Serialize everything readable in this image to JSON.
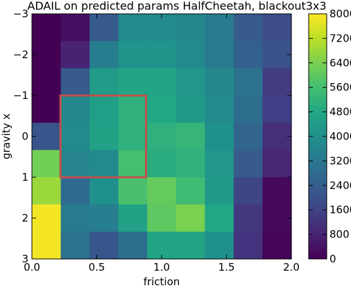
{
  "chart_data": {
    "type": "heatmap",
    "title": "ADAIL on predicted params HalfCheetah, blackout3x3",
    "xlabel": "friction",
    "ylabel": "gravity x",
    "xlim": [
      0.0,
      2.0
    ],
    "ylim": [
      -3,
      3
    ],
    "x_ticks": [
      "0.0",
      "0.5",
      "1.0",
      "1.5",
      "2.0"
    ],
    "y_ticks": [
      "−3",
      "−2",
      "−1",
      "0",
      "1",
      "2",
      "3"
    ],
    "colorbar": {
      "colormap": "viridis",
      "range": [
        0,
        8000
      ],
      "ticks": [
        "0",
        "800",
        "1600",
        "2400",
        "3200",
        "4000",
        "4800",
        "5600",
        "6400",
        "7200",
        "8000"
      ]
    },
    "rows": 9,
    "cols": 9,
    "values": [
      [
        0,
        300,
        2300,
        3800,
        3800,
        3700,
        3300,
        2300,
        1900
      ],
      [
        0,
        800,
        3400,
        4100,
        4100,
        3800,
        3300,
        2500,
        2000
      ],
      [
        0,
        2300,
        4400,
        4700,
        4700,
        4200,
        3700,
        3000,
        1400
      ],
      [
        0,
        3700,
        4500,
        5100,
        4800,
        4300,
        3800,
        2900,
        1500
      ],
      [
        2100,
        3800,
        4600,
        5100,
        5100,
        5300,
        4000,
        2600,
        1100
      ],
      [
        6300,
        3600,
        3800,
        5600,
        5000,
        5100,
        4200,
        2300,
        900
      ],
      [
        6800,
        2800,
        4000,
        5700,
        6100,
        5500,
        4300,
        1700,
        200
      ],
      [
        7900,
        3300,
        3400,
        4600,
        6000,
        6400,
        4800,
        1300,
        200
      ],
      [
        7900,
        3000,
        2200,
        2900,
        4700,
        4700,
        4000,
        1200,
        100
      ]
    ],
    "highlight_box": {
      "x_range": [
        0.22,
        0.88
      ],
      "y_range": [
        -1.0,
        1.0
      ],
      "color": "#c0504d"
    },
    "grid": false
  }
}
